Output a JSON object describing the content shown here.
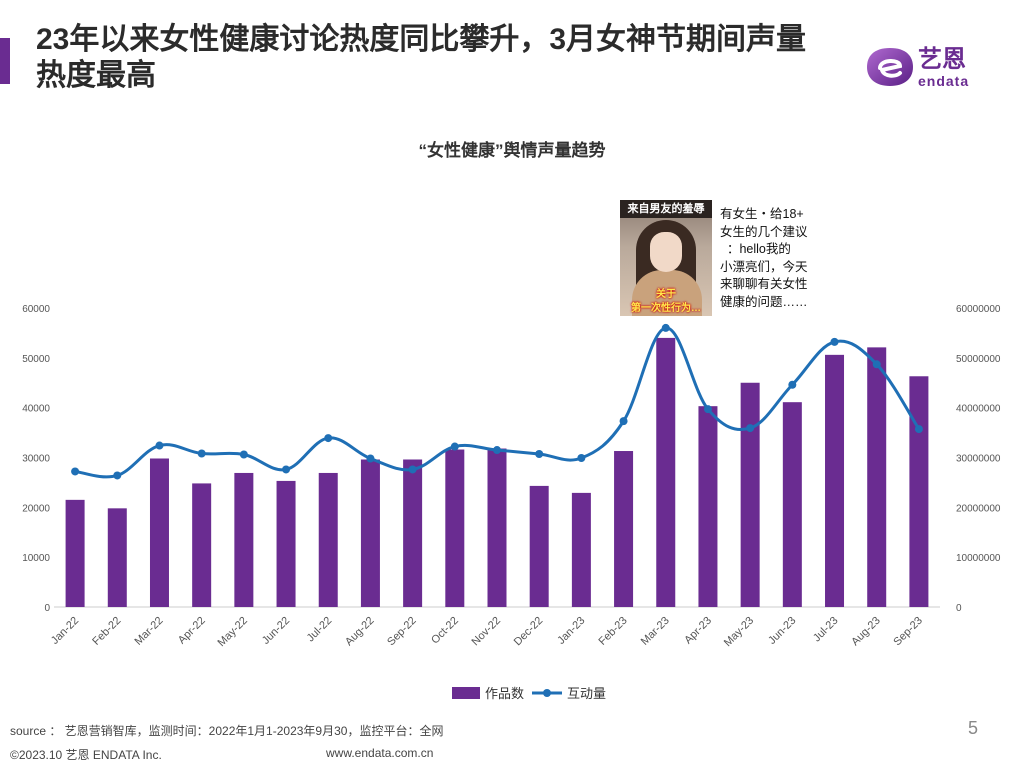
{
  "header": {
    "title": "23年以来女性健康讨论热度同比攀升，3月女神节期间声量热度最高",
    "logo_cn": "艺恩",
    "logo_en": "endata"
  },
  "post": {
    "thumb_top": "来自男友的羞辱",
    "thumb_bottom": "关于\n第一次性行为…",
    "text": "有女生・给18+\n女生的几个建议\n  ：hello我的\n小漂亮们，今天\n来聊聊有关女性\n健康的问题……"
  },
  "chart_data": {
    "type": "bar",
    "title": "“女性健康”舆情声量趋势",
    "categories": [
      "Jan-22",
      "Feb-22",
      "Mar-22",
      "Apr-22",
      "May-22",
      "Jun-22",
      "Jul-22",
      "Aug-22",
      "Sep-22",
      "Oct-22",
      "Nov-22",
      "Dec-22",
      "Jan-23",
      "Feb-23",
      "Mar-23",
      "Apr-23",
      "May-23",
      "Jun-23",
      "Jul-23",
      "Aug-23",
      "Sep-23"
    ],
    "series": [
      {
        "name": "作品数",
        "type": "bar",
        "axis": "left",
        "values": [
          21500,
          19800,
          29800,
          24800,
          26900,
          25300,
          26900,
          29600,
          29600,
          31600,
          31800,
          24300,
          22900,
          31300,
          54000,
          40300,
          45000,
          41100,
          50600,
          52100,
          46300
        ]
      },
      {
        "name": "互动量",
        "type": "line",
        "axis": "right",
        "values": [
          27200000,
          26400000,
          32400000,
          30800000,
          30600000,
          27600000,
          33900000,
          29800000,
          27600000,
          32200000,
          31500000,
          30700000,
          29900000,
          37300000,
          56000000,
          39700000,
          35900000,
          44600000,
          53200000,
          48700000,
          35700000
        ]
      }
    ],
    "ylim_left": [
      0,
      60000
    ],
    "ylim_right": [
      0,
      60000000
    ],
    "yticks_left": [
      "0",
      "10000",
      "20000",
      "30000",
      "40000",
      "50000",
      "60000"
    ],
    "yticks_right": [
      "0",
      "10000000",
      "20000000",
      "30000000",
      "40000000",
      "50000000",
      "60000000"
    ],
    "colors": {
      "bar": "#6a2c91",
      "line": "#1f6fb5"
    },
    "legend_position": "bottom"
  },
  "footer": {
    "source": "source ： 艺恩营销智库，监测时间：2022年1月1-2023年9月30，监控平台：全网",
    "page": "5",
    "copyright": "©2023.10  艺恩 ENDATA Inc.",
    "site": "www.endata.com.cn"
  }
}
